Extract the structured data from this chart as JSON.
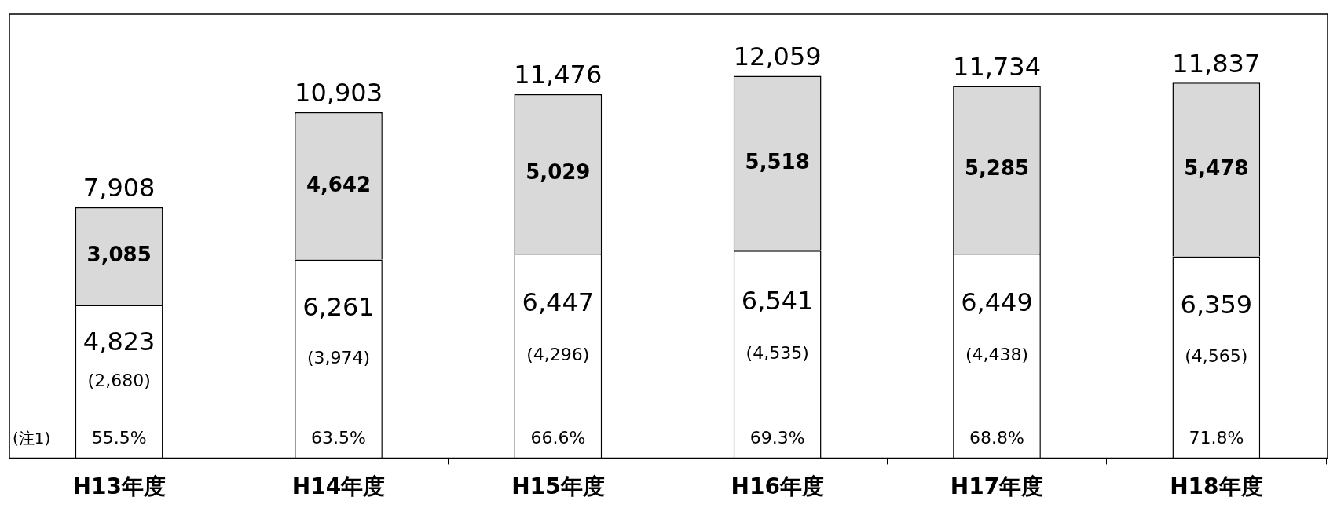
{
  "chart_data": {
    "type": "bar",
    "stacked": true,
    "categories": [
      "H13年度",
      "H14年度",
      "H15年度",
      "H16年度",
      "H17年度",
      "H18年度"
    ],
    "series": [
      {
        "color": "#ffffff",
        "values": [
          4823,
          6261,
          6447,
          6541,
          6449,
          6359
        ],
        "value_labels": [
          "4,823",
          "6,261",
          "6,447",
          "6,541",
          "6,449",
          "6,359"
        ]
      },
      {
        "color": "#d9d9d9",
        "values": [
          3085,
          4642,
          5029,
          5518,
          5285,
          5478
        ],
        "value_labels": [
          "3,085",
          "4,642",
          "5,029",
          "5,518",
          "5,285",
          "5,478"
        ]
      }
    ],
    "totals": [
      "7,908",
      "10,903",
      "11,476",
      "12,059",
      "11,734",
      "11,837"
    ],
    "ylim": [
      0,
      14000
    ],
    "tick_labels": "x",
    "grid": false,
    "legend": false,
    "annotations": [
      "(注1)",
      "(2,680)",
      "(3,974)",
      "(4,296)",
      "(4,535)",
      "(4,438)",
      "(4,565)",
      "55.5%",
      "63.5%",
      "66.6%",
      "69.3%",
      "68.8%",
      "71.8%"
    ]
  }
}
